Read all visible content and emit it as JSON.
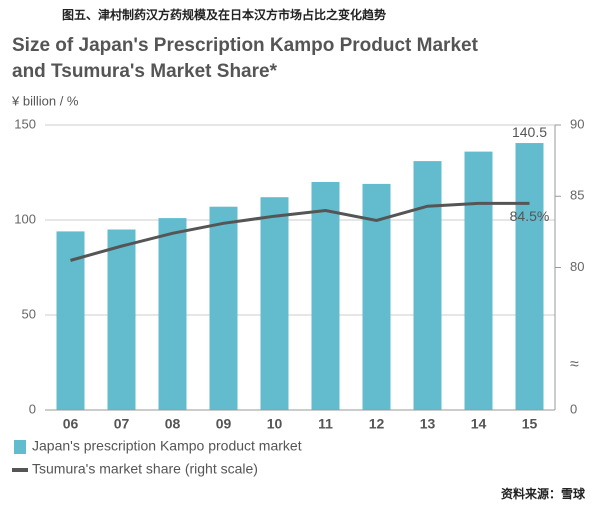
{
  "chart_data": {
    "type": "bar_line",
    "caption": "图五、津村制药汉方药规模及在日本汉方市场占比之变化趋势",
    "title": [
      "Size of Japan's Prescription Kampo Product Market",
      "and Tsumura's Market Share*"
    ],
    "y_axis_label": "¥ billion / %",
    "categories": [
      "06",
      "07",
      "08",
      "09",
      "10",
      "11",
      "12",
      "13",
      "14",
      "15"
    ],
    "series": [
      {
        "name": "Japan's prescription Kampo product market",
        "type": "bar",
        "color": "#62bccd",
        "values": [
          94,
          95,
          101,
          107,
          112,
          120,
          119,
          131,
          136,
          140.5
        ],
        "value_labels": [
          null,
          null,
          null,
          null,
          null,
          null,
          null,
          null,
          null,
          "140.5"
        ]
      },
      {
        "name": "Tsumura's market share (right scale)",
        "type": "line",
        "color": "#555555",
        "axis": "y2",
        "values": [
          80.5,
          81.5,
          82.4,
          83.1,
          83.6,
          84.0,
          83.3,
          84.3,
          84.5,
          84.5
        ],
        "value_labels": [
          null,
          null,
          null,
          null,
          null,
          null,
          null,
          null,
          null,
          "84.5%"
        ]
      }
    ],
    "ylim": [
      0,
      150
    ],
    "yticks": [
      0,
      50,
      100,
      150
    ],
    "y2lim": [
      70,
      90
    ],
    "y2ticks": [
      80,
      85,
      90
    ],
    "y2_break": {
      "label": "0",
      "symbol": "≈"
    },
    "grid": true,
    "source": "资料来源：雪球"
  }
}
